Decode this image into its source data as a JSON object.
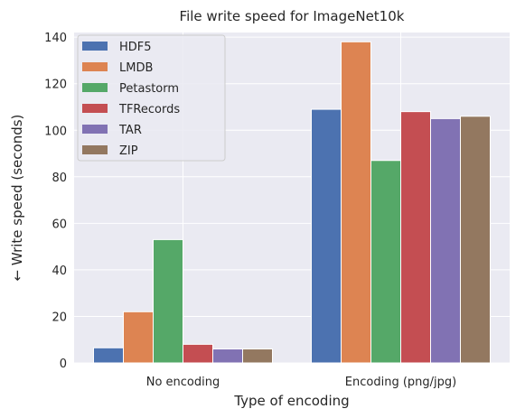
{
  "chart_data": {
    "type": "bar",
    "title": "File write speed for ImageNet10k",
    "xlabel": "Type of encoding",
    "ylabel": "← Write speed (seconds)",
    "categories": [
      "No encoding",
      "Encoding (png/jpg)"
    ],
    "ylim": [
      0,
      142
    ],
    "yticks": [
      0,
      20,
      40,
      60,
      80,
      100,
      120,
      140
    ],
    "grid": true,
    "legend_position": "top-left",
    "series": [
      {
        "name": "HDF5",
        "color": "#4c72b0",
        "values": [
          6.5,
          109
        ]
      },
      {
        "name": "LMDB",
        "color": "#dd8452",
        "values": [
          22,
          138
        ]
      },
      {
        "name": "Petastorm",
        "color": "#55a868",
        "values": [
          53,
          87
        ]
      },
      {
        "name": "TFRecords",
        "color": "#c44e52",
        "values": [
          8,
          108
        ]
      },
      {
        "name": "TAR",
        "color": "#8172b3",
        "values": [
          6,
          105
        ]
      },
      {
        "name": "ZIP",
        "color": "#937860",
        "values": [
          6,
          106
        ]
      }
    ]
  }
}
